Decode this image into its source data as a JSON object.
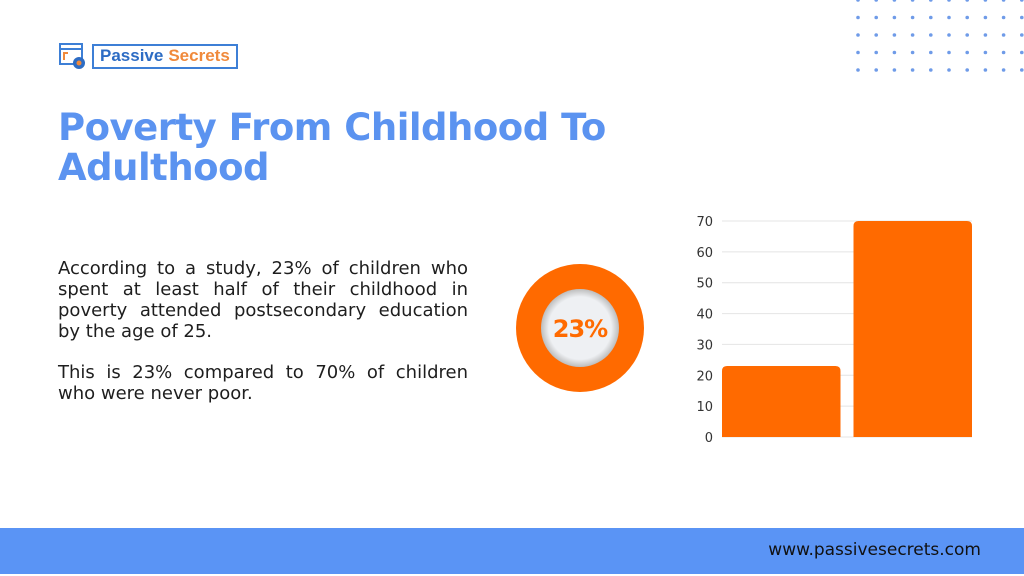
{
  "logo": {
    "text_a": "Passive",
    "text_b": "Secrets",
    "icon": "browser-gear-icon"
  },
  "title": "Poverty From Childhood To Adulthood",
  "paragraphs": [
    "According to a study, 23% of children who spent at least half of their childhood in poverty attended postsecondary education by the age of 25.",
    "This is 23% compared to 70% of children who were never poor."
  ],
  "donut": {
    "label": "23%",
    "value": 23
  },
  "footer": {
    "url": "www.passivesecrets.com"
  },
  "colors": {
    "accent": "#ff6a00",
    "title": "#5b93f0",
    "footer": "#5a94f5"
  },
  "chart_data": {
    "type": "bar",
    "categories": [
      "",
      ""
    ],
    "values": [
      23,
      70
    ],
    "ylim": [
      0,
      70
    ],
    "yticks": [
      0,
      10,
      20,
      30,
      40,
      50,
      60,
      70
    ],
    "grid": true,
    "title": "",
    "xlabel": "",
    "ylabel": ""
  }
}
